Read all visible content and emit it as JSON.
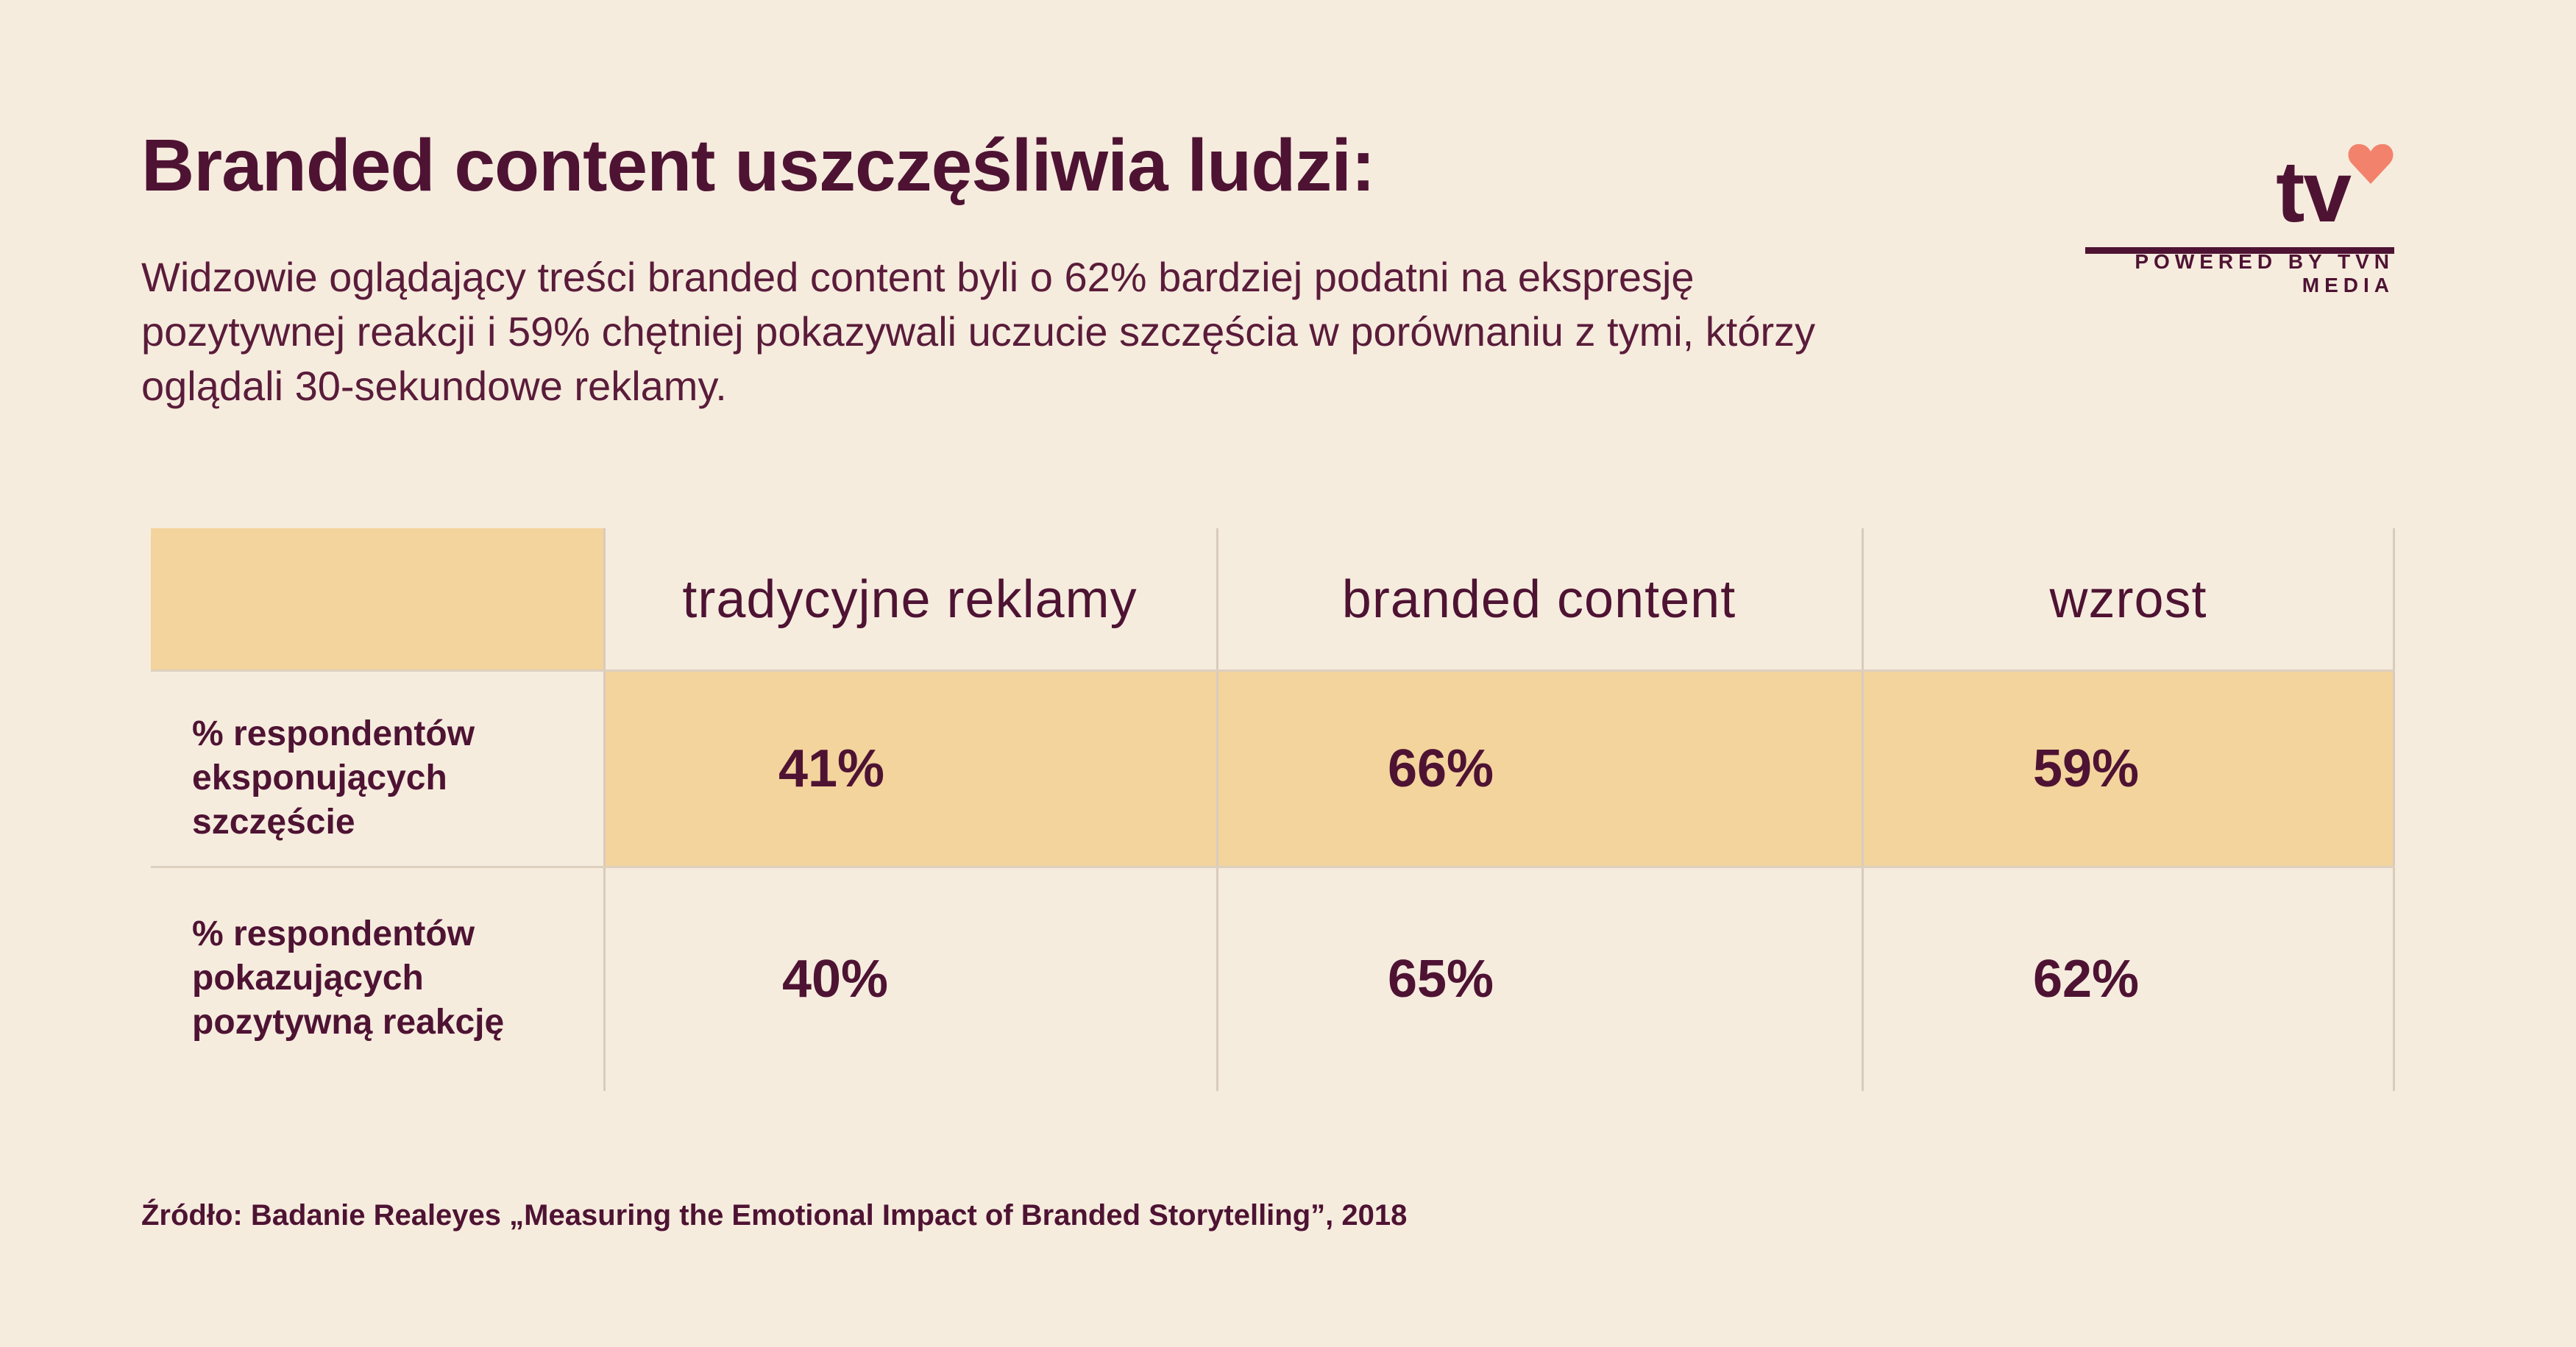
{
  "header": {
    "title": "Branded content uszczęśliwia ludzi:",
    "subtitle": "Widzowie oglądający treści branded content byli o 62% bardziej podatni na ekspresję pozytywnej reakcji i 59% chętniej pokazywali uczucie szczęścia w porównaniu z tymi, którzy oglądali 30-sekundowe reklamy."
  },
  "logo": {
    "text": "tv",
    "caption": "POWERED BY TVN MEDIA",
    "icon": "heart-icon",
    "heart_color": "#f2826c"
  },
  "table": {
    "columns": [
      "tradycyjne reklamy",
      "branded content",
      "wzrost"
    ],
    "rows": [
      {
        "label": "% respondentów eksponujących szczęście",
        "values": [
          "41%",
          "66%",
          "59%"
        ]
      },
      {
        "label": "% respondentów pokazujących pozytywną reakcję",
        "values": [
          "40%",
          "65%",
          "62%"
        ]
      }
    ]
  },
  "footer": {
    "source": "Źródło: Badanie Realeyes „Measuring the Emotional Impact of Branded Storytelling”, 2018"
  },
  "colors": {
    "background": "#f6ecde",
    "text": "#4e1333",
    "highlight": "#f3d49d"
  }
}
